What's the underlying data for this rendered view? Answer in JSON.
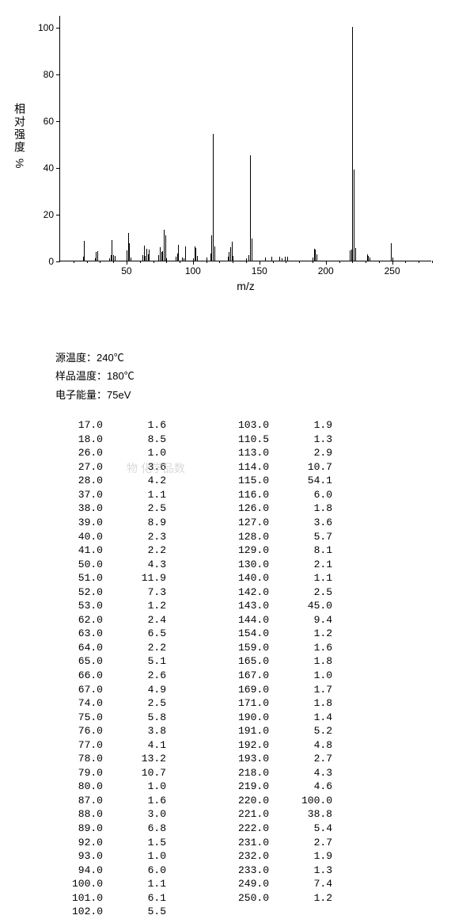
{
  "chart": {
    "type": "mass-spectrum",
    "xlabel": "m/z",
    "ylabel_cn": "相对强度",
    "ylabel_pct": "%",
    "xlim": [
      0,
      280
    ],
    "ylim": [
      0,
      105
    ],
    "xtick_step": 50,
    "xtick_minor_step": 10,
    "ytick_step": 20,
    "line_color": "#000000",
    "background_color": "#ffffff",
    "axis_color": "#000000",
    "fontsize_ticks": 12,
    "fontsize_labels": 14,
    "peaks": [
      {
        "mz": 17.0,
        "i": 1.6
      },
      {
        "mz": 18.0,
        "i": 8.5
      },
      {
        "mz": 26.0,
        "i": 1.0
      },
      {
        "mz": 27.0,
        "i": 3.6
      },
      {
        "mz": 28.0,
        "i": 4.2
      },
      {
        "mz": 37.0,
        "i": 1.1
      },
      {
        "mz": 38.0,
        "i": 2.5
      },
      {
        "mz": 39.0,
        "i": 8.9
      },
      {
        "mz": 40.0,
        "i": 2.3
      },
      {
        "mz": 41.0,
        "i": 2.2
      },
      {
        "mz": 50.0,
        "i": 4.3
      },
      {
        "mz": 51.0,
        "i": 11.9
      },
      {
        "mz": 52.0,
        "i": 7.3
      },
      {
        "mz": 53.0,
        "i": 1.2
      },
      {
        "mz": 62.0,
        "i": 2.4
      },
      {
        "mz": 63.0,
        "i": 6.5
      },
      {
        "mz": 64.0,
        "i": 2.2
      },
      {
        "mz": 65.0,
        "i": 5.1
      },
      {
        "mz": 66.0,
        "i": 2.6
      },
      {
        "mz": 67.0,
        "i": 4.9
      },
      {
        "mz": 74.0,
        "i": 2.5
      },
      {
        "mz": 75.0,
        "i": 5.8
      },
      {
        "mz": 76.0,
        "i": 3.8
      },
      {
        "mz": 77.0,
        "i": 4.1
      },
      {
        "mz": 78.0,
        "i": 13.2
      },
      {
        "mz": 79.0,
        "i": 10.7
      },
      {
        "mz": 80.0,
        "i": 1.0
      },
      {
        "mz": 87.0,
        "i": 1.6
      },
      {
        "mz": 88.0,
        "i": 3.0
      },
      {
        "mz": 89.0,
        "i": 6.8
      },
      {
        "mz": 92.0,
        "i": 1.5
      },
      {
        "mz": 93.0,
        "i": 1.0
      },
      {
        "mz": 94.0,
        "i": 6.0
      },
      {
        "mz": 100.0,
        "i": 1.1
      },
      {
        "mz": 101.0,
        "i": 6.1
      },
      {
        "mz": 102.0,
        "i": 5.5
      },
      {
        "mz": 103.0,
        "i": 1.9
      },
      {
        "mz": 110.5,
        "i": 1.3
      },
      {
        "mz": 113.0,
        "i": 2.9
      },
      {
        "mz": 114.0,
        "i": 10.7
      },
      {
        "mz": 115.0,
        "i": 54.1
      },
      {
        "mz": 116.0,
        "i": 6.0
      },
      {
        "mz": 126.0,
        "i": 1.8
      },
      {
        "mz": 127.0,
        "i": 3.6
      },
      {
        "mz": 128.0,
        "i": 5.7
      },
      {
        "mz": 129.0,
        "i": 8.1
      },
      {
        "mz": 130.0,
        "i": 2.1
      },
      {
        "mz": 140.0,
        "i": 1.1
      },
      {
        "mz": 142.0,
        "i": 2.5
      },
      {
        "mz": 143.0,
        "i": 45.0
      },
      {
        "mz": 144.0,
        "i": 9.4
      },
      {
        "mz": 154.0,
        "i": 1.2
      },
      {
        "mz": 159.0,
        "i": 1.6
      },
      {
        "mz": 165.0,
        "i": 1.8
      },
      {
        "mz": 167.0,
        "i": 1.0
      },
      {
        "mz": 169.0,
        "i": 1.7
      },
      {
        "mz": 171.0,
        "i": 1.8
      },
      {
        "mz": 190.0,
        "i": 1.4
      },
      {
        "mz": 191.0,
        "i": 5.2
      },
      {
        "mz": 192.0,
        "i": 4.8
      },
      {
        "mz": 193.0,
        "i": 2.7
      },
      {
        "mz": 218.0,
        "i": 4.3
      },
      {
        "mz": 219.0,
        "i": 4.6
      },
      {
        "mz": 220.0,
        "i": 100.0
      },
      {
        "mz": 221.0,
        "i": 38.8
      },
      {
        "mz": 222.0,
        "i": 5.4
      },
      {
        "mz": 231.0,
        "i": 2.7
      },
      {
        "mz": 232.0,
        "i": 1.9
      },
      {
        "mz": 233.0,
        "i": 1.3
      },
      {
        "mz": 249.0,
        "i": 7.4
      },
      {
        "mz": 250.0,
        "i": 1.2
      }
    ]
  },
  "meta": {
    "source_temp_label": "源温度：",
    "source_temp_value": "240℃",
    "sample_temp_label": "样品温度：",
    "sample_temp_value": "180℃",
    "electron_energy_label": "电子能量：",
    "electron_energy_value": "75eV"
  },
  "watermark_text": "物    化学品数",
  "table": {
    "col1": [
      {
        "mz": "17.0",
        "i": "1.6"
      },
      {
        "mz": "18.0",
        "i": "8.5"
      },
      {
        "mz": "26.0",
        "i": "1.0"
      },
      {
        "mz": "27.0",
        "i": "3.6"
      },
      {
        "mz": "28.0",
        "i": "4.2"
      },
      {
        "mz": "37.0",
        "i": "1.1"
      },
      {
        "mz": "38.0",
        "i": "2.5"
      },
      {
        "mz": "39.0",
        "i": "8.9"
      },
      {
        "mz": "40.0",
        "i": "2.3"
      },
      {
        "mz": "41.0",
        "i": "2.2"
      },
      {
        "mz": "50.0",
        "i": "4.3"
      },
      {
        "mz": "51.0",
        "i": "11.9"
      },
      {
        "mz": "52.0",
        "i": "7.3"
      },
      {
        "mz": "53.0",
        "i": "1.2"
      },
      {
        "mz": "62.0",
        "i": "2.4"
      },
      {
        "mz": "63.0",
        "i": "6.5"
      },
      {
        "mz": "64.0",
        "i": "2.2"
      },
      {
        "mz": "65.0",
        "i": "5.1"
      },
      {
        "mz": "66.0",
        "i": "2.6"
      },
      {
        "mz": "67.0",
        "i": "4.9"
      },
      {
        "mz": "74.0",
        "i": "2.5"
      },
      {
        "mz": "75.0",
        "i": "5.8"
      },
      {
        "mz": "76.0",
        "i": "3.8"
      },
      {
        "mz": "77.0",
        "i": "4.1"
      },
      {
        "mz": "78.0",
        "i": "13.2"
      },
      {
        "mz": "79.0",
        "i": "10.7"
      },
      {
        "mz": "80.0",
        "i": "1.0"
      },
      {
        "mz": "87.0",
        "i": "1.6"
      },
      {
        "mz": "88.0",
        "i": "3.0"
      },
      {
        "mz": "89.0",
        "i": "6.8"
      },
      {
        "mz": "92.0",
        "i": "1.5"
      },
      {
        "mz": "93.0",
        "i": "1.0"
      },
      {
        "mz": "94.0",
        "i": "6.0"
      },
      {
        "mz": "100.0",
        "i": "1.1"
      },
      {
        "mz": "101.0",
        "i": "6.1"
      },
      {
        "mz": "102.0",
        "i": "5.5"
      }
    ],
    "col2": [
      {
        "mz": "103.0",
        "i": "1.9"
      },
      {
        "mz": "110.5",
        "i": "1.3"
      },
      {
        "mz": "113.0",
        "i": "2.9"
      },
      {
        "mz": "114.0",
        "i": "10.7"
      },
      {
        "mz": "115.0",
        "i": "54.1"
      },
      {
        "mz": "116.0",
        "i": "6.0"
      },
      {
        "mz": "126.0",
        "i": "1.8"
      },
      {
        "mz": "127.0",
        "i": "3.6"
      },
      {
        "mz": "128.0",
        "i": "5.7"
      },
      {
        "mz": "129.0",
        "i": "8.1"
      },
      {
        "mz": "130.0",
        "i": "2.1"
      },
      {
        "mz": "140.0",
        "i": "1.1"
      },
      {
        "mz": "142.0",
        "i": "2.5"
      },
      {
        "mz": "143.0",
        "i": "45.0"
      },
      {
        "mz": "144.0",
        "i": "9.4"
      },
      {
        "mz": "154.0",
        "i": "1.2"
      },
      {
        "mz": "159.0",
        "i": "1.6"
      },
      {
        "mz": "165.0",
        "i": "1.8"
      },
      {
        "mz": "167.0",
        "i": "1.0"
      },
      {
        "mz": "169.0",
        "i": "1.7"
      },
      {
        "mz": "171.0",
        "i": "1.8"
      },
      {
        "mz": "190.0",
        "i": "1.4"
      },
      {
        "mz": "191.0",
        "i": "5.2"
      },
      {
        "mz": "192.0",
        "i": "4.8"
      },
      {
        "mz": "193.0",
        "i": "2.7"
      },
      {
        "mz": "218.0",
        "i": "4.3"
      },
      {
        "mz": "219.0",
        "i": "4.6"
      },
      {
        "mz": "220.0",
        "i": "100.0"
      },
      {
        "mz": "221.0",
        "i": "38.8"
      },
      {
        "mz": "222.0",
        "i": "5.4"
      },
      {
        "mz": "231.0",
        "i": "2.7"
      },
      {
        "mz": "232.0",
        "i": "1.9"
      },
      {
        "mz": "233.0",
        "i": "1.3"
      },
      {
        "mz": "249.0",
        "i": "7.4"
      },
      {
        "mz": "250.0",
        "i": "1.2"
      }
    ]
  }
}
